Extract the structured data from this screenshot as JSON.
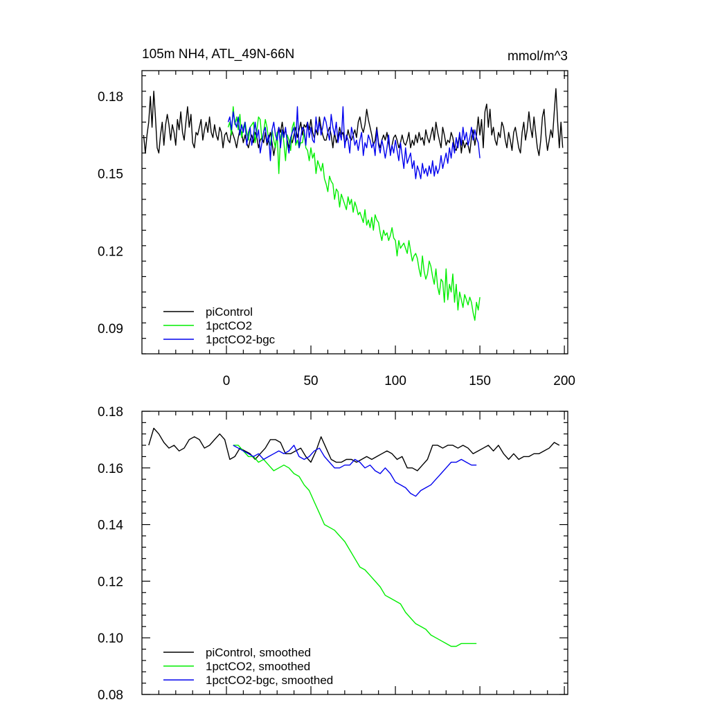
{
  "chart_data": [
    {
      "type": "line",
      "title": "105m NH4, ATL_49N-66N",
      "units": "mmol/m^3",
      "xlim": [
        -50,
        202
      ],
      "ylim": [
        0.08,
        0.19
      ],
      "x_ticks": [
        0,
        50,
        100,
        150,
        200
      ],
      "y_ticks": [
        0.09,
        0.12,
        0.15,
        0.18
      ],
      "y_tick_labels": [
        "0.09",
        "0.12",
        "0.15",
        "0.18"
      ],
      "legend_position": "bottom-left",
      "series": [
        {
          "name": "piControl",
          "color": "#000000",
          "x_start": -49,
          "x_end": 201,
          "step": 1,
          "values": [
            0.165,
            0.158,
            0.165,
            0.17,
            0.18,
            0.168,
            0.182,
            0.172,
            0.16,
            0.158,
            0.165,
            0.17,
            0.161,
            0.169,
            0.173,
            0.169,
            0.163,
            0.169,
            0.166,
            0.161,
            0.171,
            0.167,
            0.174,
            0.166,
            0.163,
            0.17,
            0.176,
            0.168,
            0.173,
            0.162,
            0.16,
            0.166,
            0.165,
            0.168,
            0.171,
            0.163,
            0.167,
            0.17,
            0.166,
            0.172,
            0.166,
            0.164,
            0.169,
            0.165,
            0.163,
            0.168,
            0.166,
            0.16,
            0.165,
            0.166,
            0.163,
            0.162,
            0.167,
            0.165,
            0.163,
            0.16,
            0.164,
            0.167,
            0.166,
            0.162,
            0.165,
            0.162,
            0.16,
            0.163,
            0.165,
            0.162,
            0.166,
            0.164,
            0.16,
            0.163,
            0.164,
            0.162,
            0.166,
            0.161,
            0.163,
            0.166,
            0.162,
            0.157,
            0.161,
            0.165,
            0.168,
            0.166,
            0.17,
            0.165,
            0.167,
            0.163,
            0.16,
            0.164,
            0.162,
            0.165,
            0.168,
            0.164,
            0.167,
            0.17,
            0.165,
            0.169,
            0.168,
            0.17,
            0.167,
            0.171,
            0.166,
            0.164,
            0.167,
            0.165,
            0.172,
            0.168,
            0.165,
            0.163,
            0.163,
            0.166,
            0.168,
            0.165,
            0.16,
            0.166,
            0.162,
            0.164,
            0.168,
            0.165,
            0.166,
            0.162,
            0.163,
            0.167,
            0.164,
            0.163,
            0.165,
            0.167,
            0.164,
            0.17,
            0.172,
            0.168,
            0.166,
            0.169,
            0.175,
            0.171,
            0.168,
            0.165,
            0.161,
            0.163,
            0.168,
            0.162,
            0.16,
            0.163,
            0.165,
            0.163,
            0.166,
            0.162,
            0.158,
            0.161,
            0.164,
            0.165,
            0.163,
            0.16,
            0.162,
            0.165,
            0.162,
            0.161,
            0.163,
            0.166,
            0.16,
            0.163,
            0.161,
            0.165,
            0.162,
            0.166,
            0.163,
            0.164,
            0.161,
            0.167,
            0.164,
            0.162,
            0.165,
            0.168,
            0.163,
            0.17,
            0.166,
            0.163,
            0.16,
            0.168,
            0.165,
            0.161,
            0.163,
            0.162,
            0.166,
            0.164,
            0.16,
            0.159,
            0.162,
            0.165,
            0.158,
            0.163,
            0.16,
            0.162,
            0.161,
            0.158,
            0.164,
            0.167,
            0.161,
            0.165,
            0.172,
            0.165,
            0.171,
            0.16,
            0.174,
            0.177,
            0.168,
            0.175,
            0.165,
            0.168,
            0.163,
            0.161,
            0.166,
            0.164,
            0.17,
            0.168,
            0.163,
            0.16,
            0.166,
            0.163,
            0.159,
            0.166,
            0.168,
            0.164,
            0.16,
            0.158,
            0.166,
            0.17,
            0.163,
            0.167,
            0.174,
            0.168,
            0.164,
            0.172,
            0.166,
            0.16,
            0.157,
            0.163,
            0.172,
            0.175,
            0.165,
            0.159,
            0.163,
            0.167,
            0.164,
            0.174,
            0.183,
            0.17,
            0.16,
            0.17,
            0.16
          ]
        },
        {
          "name": "1pctCO2",
          "color": "#00ee00",
          "x_start": 1,
          "x_end": 150,
          "step": 1,
          "values": [
            0.168,
            0.17,
            0.165,
            0.176,
            0.169,
            0.172,
            0.167,
            0.173,
            0.164,
            0.168,
            0.17,
            0.166,
            0.163,
            0.168,
            0.169,
            0.17,
            0.162,
            0.167,
            0.172,
            0.171,
            0.163,
            0.166,
            0.171,
            0.168,
            0.163,
            0.161,
            0.167,
            0.163,
            0.16,
            0.166,
            0.15,
            0.164,
            0.167,
            0.162,
            0.155,
            0.165,
            0.163,
            0.159,
            0.168,
            0.17,
            0.161,
            0.163,
            0.16,
            0.162,
            0.162,
            0.166,
            0.16,
            0.159,
            0.155,
            0.16,
            0.156,
            0.158,
            0.15,
            0.155,
            0.153,
            0.151,
            0.154,
            0.148,
            0.146,
            0.143,
            0.149,
            0.147,
            0.146,
            0.14,
            0.144,
            0.143,
            0.137,
            0.142,
            0.14,
            0.138,
            0.136,
            0.141,
            0.138,
            0.14,
            0.135,
            0.139,
            0.137,
            0.134,
            0.135,
            0.133,
            0.131,
            0.136,
            0.13,
            0.132,
            0.129,
            0.133,
            0.128,
            0.134,
            0.132,
            0.131,
            0.127,
            0.124,
            0.128,
            0.126,
            0.127,
            0.124,
            0.126,
            0.129,
            0.125,
            0.124,
            0.118,
            0.124,
            0.121,
            0.122,
            0.123,
            0.121,
            0.119,
            0.124,
            0.12,
            0.116,
            0.118,
            0.119,
            0.117,
            0.113,
            0.11,
            0.118,
            0.112,
            0.109,
            0.111,
            0.116,
            0.114,
            0.11,
            0.107,
            0.113,
            0.106,
            0.103,
            0.109,
            0.108,
            0.1,
            0.113,
            0.101,
            0.107,
            0.104,
            0.111,
            0.1,
            0.107,
            0.097,
            0.104,
            0.101,
            0.098,
            0.103,
            0.101,
            0.099,
            0.102,
            0.1,
            0.096,
            0.093,
            0.1,
            0.097,
            0.102
          ]
        },
        {
          "name": "1pctCO2-bgc",
          "color": "#0000ee",
          "x_start": 1,
          "x_end": 150,
          "step": 1,
          "values": [
            0.17,
            0.172,
            0.167,
            0.174,
            0.17,
            0.168,
            0.172,
            0.165,
            0.169,
            0.166,
            0.17,
            0.161,
            0.166,
            0.168,
            0.161,
            0.165,
            0.17,
            0.164,
            0.167,
            0.158,
            0.162,
            0.166,
            0.168,
            0.162,
            0.165,
            0.155,
            0.167,
            0.17,
            0.165,
            0.163,
            0.168,
            0.16,
            0.167,
            0.164,
            0.168,
            0.162,
            0.158,
            0.164,
            0.166,
            0.168,
            0.162,
            0.176,
            0.16,
            0.164,
            0.168,
            0.167,
            0.161,
            0.17,
            0.164,
            0.168,
            0.163,
            0.162,
            0.172,
            0.166,
            0.17,
            0.165,
            0.168,
            0.172,
            0.17,
            0.166,
            0.163,
            0.173,
            0.168,
            0.165,
            0.17,
            0.162,
            0.166,
            0.163,
            0.176,
            0.16,
            0.165,
            0.163,
            0.158,
            0.168,
            0.165,
            0.161,
            0.163,
            0.159,
            0.163,
            0.166,
            0.157,
            0.162,
            0.16,
            0.165,
            0.163,
            0.16,
            0.162,
            0.157,
            0.167,
            0.161,
            0.158,
            0.163,
            0.16,
            0.156,
            0.16,
            0.165,
            0.157,
            0.161,
            0.158,
            0.163,
            0.159,
            0.155,
            0.162,
            0.157,
            0.152,
            0.16,
            0.154,
            0.156,
            0.158,
            0.152,
            0.155,
            0.148,
            0.153,
            0.151,
            0.148,
            0.154,
            0.15,
            0.152,
            0.149,
            0.153,
            0.15,
            0.155,
            0.149,
            0.153,
            0.15,
            0.152,
            0.157,
            0.152,
            0.155,
            0.158,
            0.154,
            0.16,
            0.156,
            0.162,
            0.158,
            0.164,
            0.16,
            0.166,
            0.161,
            0.168,
            0.163,
            0.166,
            0.161,
            0.164,
            0.168,
            0.163,
            0.167,
            0.164,
            0.162,
            0.156
          ]
        }
      ]
    },
    {
      "type": "line",
      "title": "",
      "xlim": [
        -50,
        202
      ],
      "ylim": [
        0.08,
        0.18
      ],
      "y_ticks": [
        0.08,
        0.1,
        0.12,
        0.14,
        0.16,
        0.18
      ],
      "y_tick_labels": [
        "0.08",
        "0.10",
        "0.12",
        "0.14",
        "0.16",
        "0.18"
      ],
      "legend_position": "bottom-left",
      "series": [
        {
          "name": "piControl, smoothed",
          "color": "#000000",
          "x_start": -46,
          "x_end": 197,
          "step": 3,
          "values": [
            0.168,
            0.174,
            0.172,
            0.169,
            0.167,
            0.168,
            0.166,
            0.167,
            0.17,
            0.171,
            0.17,
            0.167,
            0.168,
            0.17,
            0.172,
            0.17,
            0.163,
            0.164,
            0.167,
            0.166,
            0.165,
            0.163,
            0.165,
            0.167,
            0.17,
            0.17,
            0.169,
            0.165,
            0.165,
            0.166,
            0.167,
            0.164,
            0.162,
            0.166,
            0.171,
            0.167,
            0.163,
            0.162,
            0.162,
            0.163,
            0.163,
            0.162,
            0.163,
            0.164,
            0.163,
            0.164,
            0.165,
            0.166,
            0.165,
            0.163,
            0.164,
            0.16,
            0.16,
            0.159,
            0.161,
            0.163,
            0.168,
            0.168,
            0.167,
            0.168,
            0.168,
            0.167,
            0.168,
            0.167,
            0.165,
            0.166,
            0.167,
            0.168,
            0.166,
            0.168,
            0.165,
            0.163,
            0.165,
            0.163,
            0.164,
            0.164,
            0.165,
            0.165,
            0.166,
            0.167,
            0.169,
            0.168
          ]
        },
        {
          "name": "1pctCO2, smoothed",
          "color": "#00ee00",
          "x_start": 4,
          "x_end": 148,
          "step": 3,
          "values": [
            0.168,
            0.168,
            0.166,
            0.164,
            0.164,
            0.162,
            0.163,
            0.161,
            0.159,
            0.16,
            0.161,
            0.16,
            0.158,
            0.157,
            0.154,
            0.152,
            0.148,
            0.144,
            0.14,
            0.139,
            0.138,
            0.136,
            0.134,
            0.131,
            0.128,
            0.125,
            0.124,
            0.122,
            0.12,
            0.118,
            0.115,
            0.114,
            0.113,
            0.112,
            0.109,
            0.107,
            0.105,
            0.104,
            0.103,
            0.101,
            0.1,
            0.099,
            0.098,
            0.097,
            0.097,
            0.098,
            0.098,
            0.098,
            0.098
          ]
        },
        {
          "name": "1pctCO2-bgc, smoothed",
          "color": "#0000ee",
          "x_start": 4,
          "x_end": 148,
          "step": 3,
          "values": [
            0.168,
            0.167,
            0.166,
            0.165,
            0.164,
            0.165,
            0.163,
            0.164,
            0.165,
            0.166,
            0.165,
            0.166,
            0.168,
            0.164,
            0.163,
            0.164,
            0.166,
            0.167,
            0.164,
            0.162,
            0.16,
            0.16,
            0.161,
            0.161,
            0.163,
            0.162,
            0.16,
            0.161,
            0.159,
            0.158,
            0.16,
            0.158,
            0.155,
            0.154,
            0.153,
            0.151,
            0.15,
            0.152,
            0.153,
            0.154,
            0.156,
            0.158,
            0.16,
            0.162,
            0.162,
            0.163,
            0.162,
            0.161,
            0.161
          ]
        }
      ]
    }
  ]
}
